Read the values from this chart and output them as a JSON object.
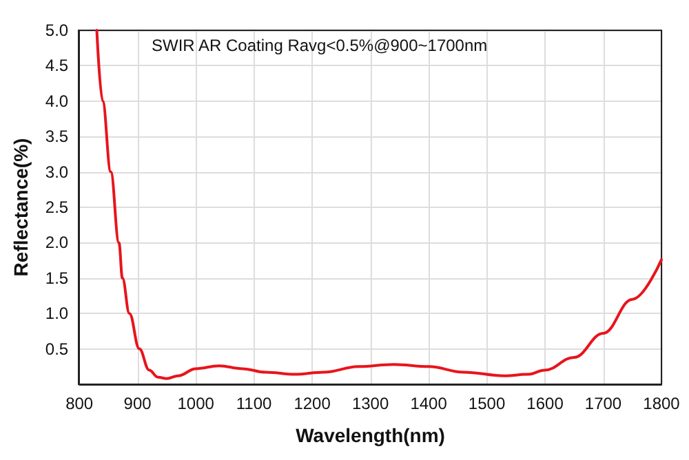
{
  "chart_data": {
    "type": "line",
    "title": "SWIR AR Coating Ravg<0.5%@900~1700nm",
    "xlabel": "Wavelength(nm)",
    "ylabel": "Reflectance(%)",
    "x": [
      830,
      840,
      854,
      868,
      874,
      886,
      903,
      920,
      935,
      950,
      970,
      1000,
      1040,
      1080,
      1120,
      1170,
      1220,
      1280,
      1340,
      1400,
      1460,
      1530,
      1570,
      1600,
      1650,
      1700,
      1750,
      1800
    ],
    "series": [
      {
        "color": "#e8141b",
        "values": [
          5.0,
          4.0,
          3.0,
          2.0,
          1.5,
          1.0,
          0.5,
          0.2,
          0.1,
          0.08,
          0.12,
          0.22,
          0.26,
          0.22,
          0.17,
          0.14,
          0.17,
          0.25,
          0.28,
          0.25,
          0.17,
          0.12,
          0.14,
          0.2,
          0.38,
          0.72,
          1.2,
          1.76
        ]
      }
    ],
    "xlim": [
      800,
      1800
    ],
    "xticks": [
      800,
      900,
      1000,
      1100,
      1200,
      1300,
      1400,
      1500,
      1600,
      1700,
      1800
    ],
    "ylim": [
      0,
      5
    ],
    "yticks": [
      {
        "value": 0,
        "label": null
      },
      {
        "value": 0.5,
        "label": "0.5"
      },
      {
        "value": 1,
        "label": "1.0"
      },
      {
        "value": 1.5,
        "label": "1.5"
      },
      {
        "value": 2,
        "label": "2.0"
      },
      {
        "value": 2.5,
        "label": "2.5"
      },
      {
        "value": 3,
        "label": "3.0"
      },
      {
        "value": 3.5,
        "label": "3.5"
      },
      {
        "value": 4,
        "label": "4.0"
      },
      {
        "value": 4.5,
        "label": "4.5"
      },
      {
        "value": 5,
        "label": "5.0"
      }
    ],
    "grid": true,
    "line_style": "solid",
    "marker": "none"
  }
}
